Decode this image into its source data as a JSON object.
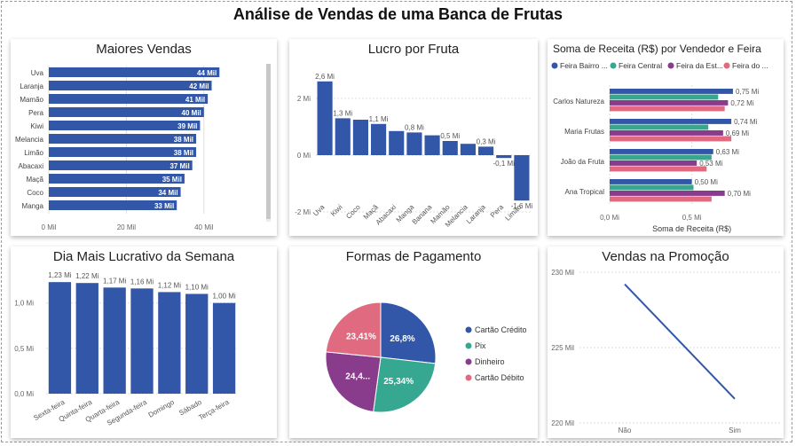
{
  "page": {
    "title": "Análise de Vendas de uma Banca de Frutas"
  },
  "colors": {
    "bar": "#3257A8",
    "teal": "#36A891",
    "purple": "#8A3C8C",
    "pink": "#E06B80",
    "grid": "#dddddd",
    "scroll_track": "#ececec",
    "scroll_thumb": "#c8c8c8"
  },
  "chart_data": [
    {
      "id": "maiores_vendas",
      "type": "bar",
      "orientation": "horizontal",
      "title": "Maiores Vendas",
      "categories": [
        "Uva",
        "Laranja",
        "Mamão",
        "Pera",
        "Kiwi",
        "Melancia",
        "Limão",
        "Abacaxi",
        "Maçã",
        "Coco",
        "Manga"
      ],
      "values": [
        44,
        42,
        41,
        40,
        39,
        38,
        38,
        37,
        35,
        34,
        33
      ],
      "labels": [
        "44 Mil",
        "42 Mil",
        "41 Mil",
        "40 Mil",
        "39 Mil",
        "38 Mil",
        "38 Mil",
        "37 Mil",
        "35 Mil",
        "34 Mil",
        "33 Mil"
      ],
      "xlim": [
        0,
        46
      ],
      "xticks": [
        0,
        20,
        40
      ],
      "xtick_labels": [
        "0 Mil",
        "20 Mil",
        "40 Mil"
      ]
    },
    {
      "id": "lucro_por_fruta",
      "type": "bar",
      "title": "Lucro por Fruta",
      "categories": [
        "Uva",
        "Kiwi",
        "Coco",
        "Maçã",
        "Abacaxi",
        "Manga",
        "Banana",
        "Mamão",
        "Melancia",
        "Laranja",
        "Pera",
        "Limão"
      ],
      "values": [
        2.6,
        1.3,
        1.25,
        1.1,
        0.85,
        0.8,
        0.7,
        0.5,
        0.4,
        0.3,
        -0.1,
        -1.6
      ],
      "labels": [
        "2,6 Mi",
        "1,3 Mi",
        "",
        "1,1 Mi",
        "",
        "0,8 Mi",
        "",
        "0,5 Mi",
        "",
        "0,3 Mi",
        "-0,1 Mi",
        "-1,6 Mi"
      ],
      "ylim": [
        -2,
        3
      ],
      "yticks": [
        -2,
        0,
        2
      ],
      "ytick_labels": [
        "-2 Mi",
        "0 Mi",
        "2 Mi"
      ]
    },
    {
      "id": "receita_vendedor_feira",
      "type": "bar",
      "orientation": "horizontal",
      "title": "Soma de Receita (R$) por Vendedor e Feira",
      "xlabel": "Soma de Receita (R$)",
      "categories": [
        "Carlos Natureza",
        "Maria Frutas",
        "João da Fruta",
        "Ana Tropical"
      ],
      "series": [
        {
          "name": "Feira Bairro ...",
          "values": [
            0.75,
            0.74,
            0.63,
            0.5
          ],
          "labels": [
            "0,75 Mi",
            "0,74 Mi",
            "0,63 Mi",
            "0,50 Mi"
          ]
        },
        {
          "name": "Feira Central",
          "values": [
            0.66,
            0.6,
            0.62,
            0.51
          ],
          "labels": [
            "",
            "",
            "",
            ""
          ]
        },
        {
          "name": "Feira da Est...",
          "values": [
            0.72,
            0.69,
            0.53,
            0.7
          ],
          "labels": [
            "0,72 Mi",
            "0,69 Mi",
            "0,53 Mi",
            "0,70 Mi"
          ]
        },
        {
          "name": "Feira do ...",
          "values": [
            0.7,
            0.74,
            0.59,
            0.62
          ],
          "labels": [
            "",
            "",
            "",
            ""
          ]
        }
      ],
      "xlim": [
        0,
        0.95
      ],
      "xticks": [
        0,
        0.5
      ],
      "xtick_labels": [
        "0,0 Mi",
        "0,5 Mi"
      ]
    },
    {
      "id": "dia_mais_lucrativo",
      "type": "bar",
      "title": "Dia Mais Lucrativo da Semana",
      "categories": [
        "Sexta-feira",
        "Quinta-feira",
        "Quarta-feira",
        "Segunda-feira",
        "Domingo",
        "Sábado",
        "Terça-feira"
      ],
      "values": [
        1.23,
        1.22,
        1.17,
        1.16,
        1.12,
        1.1,
        1.0
      ],
      "labels": [
        "1,23 Mi",
        "1,22 Mi",
        "1,17 Mi",
        "1,16 Mi",
        "1,12 Mi",
        "1,10 Mi",
        "1,00 Mi"
      ],
      "ylim": [
        0,
        1.3
      ],
      "yticks": [
        0,
        0.5,
        1.0
      ],
      "ytick_labels": [
        "0,0 Mi",
        "0,5 Mi",
        "1,0 Mi"
      ]
    },
    {
      "id": "formas_pagamento",
      "type": "pie",
      "title": "Formas de Pagamento",
      "categories": [
        "Cartão Crédito",
        "Pix",
        "Dinheiro",
        "Cartão Débito"
      ],
      "values": [
        26.8,
        25.34,
        24.45,
        23.41
      ],
      "labels": [
        "26,8%",
        "25,34%",
        "24,4...",
        "23,41%"
      ]
    },
    {
      "id": "vendas_promocao",
      "type": "line",
      "title": "Vendas na Promoção",
      "x": [
        "Não",
        "Sim"
      ],
      "values": [
        229.2,
        221.6
      ],
      "ylim": [
        220,
        230
      ],
      "yticks": [
        220,
        225,
        230
      ],
      "ytick_labels": [
        "220 Mil",
        "225 Mil",
        "230 Mil"
      ]
    }
  ]
}
